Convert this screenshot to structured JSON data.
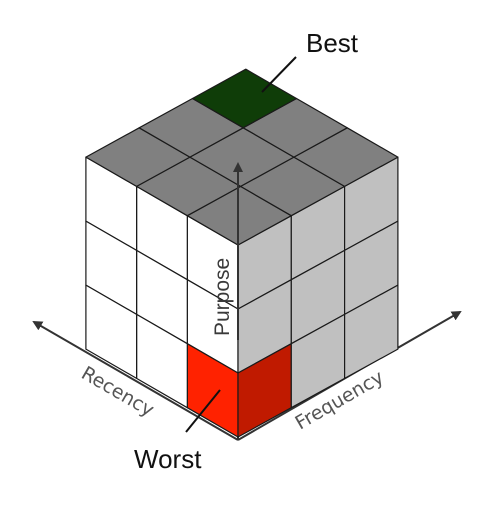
{
  "labels": {
    "best": "Best",
    "worst": "Worst",
    "purpose": "Purpose",
    "recency": "Recency",
    "frequency": "Frequency"
  },
  "colors": {
    "top_face": "#808080",
    "left_face": "#ffffff",
    "right_face": "#c0c0c0",
    "best_cell": "#0f3d08",
    "worst_cell_left": "#ff2200",
    "worst_cell_right": "#c01a00",
    "edge": "#1a1a1a",
    "axis": "#333333"
  }
}
